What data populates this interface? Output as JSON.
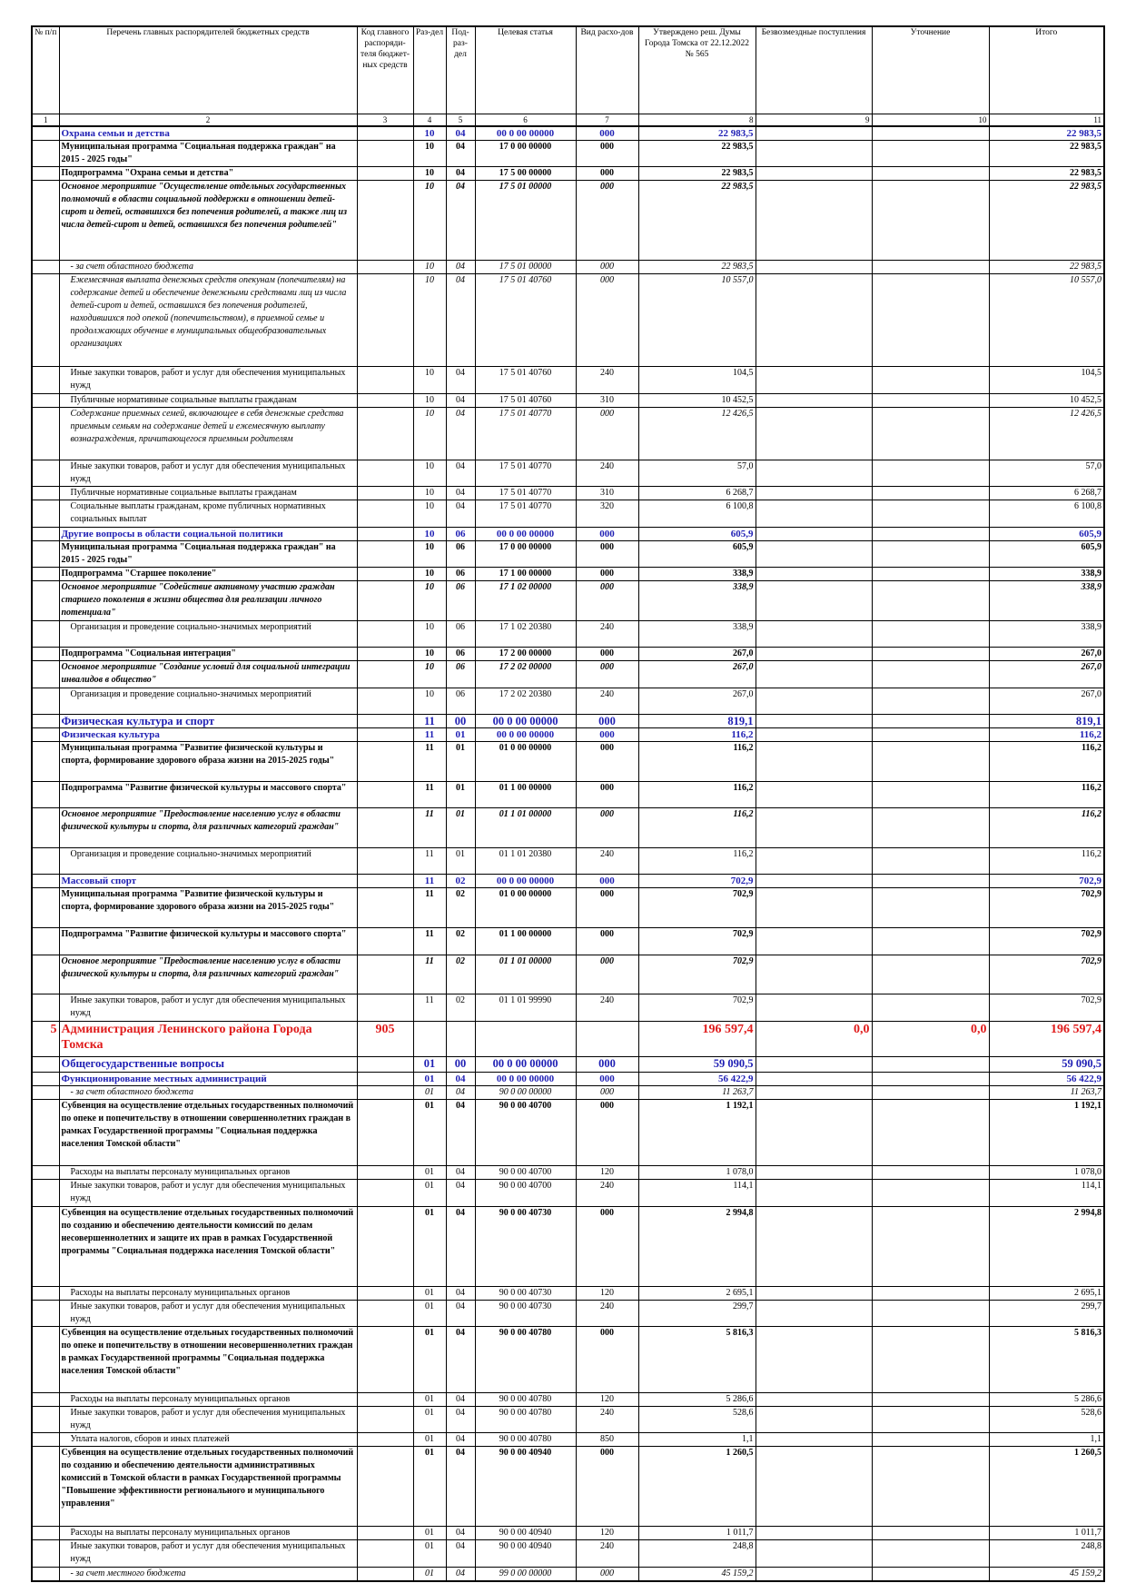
{
  "table": {
    "headers": [
      "№ п/п",
      "Перечень главных распорядителей бюджетных средств",
      "Код главного распоряди-теля бюджет-ных средств",
      "Раз-дел",
      "Под-раз-дел",
      "Целевая статья",
      "Вид расхо-дов",
      "Утверждено реш. Думы Города Томска от 22.12.2022 № 565",
      "Безвозмездные поступления",
      "Уточнение",
      "Итого"
    ],
    "column_numbers": [
      "1",
      "2",
      "3",
      "4",
      "5",
      "6",
      "7",
      "8",
      "9",
      "10",
      "11"
    ],
    "rows": [
      [
        null,
        "Охрана семьи и детства",
        null,
        "10",
        "04",
        "00 0 00 00000",
        "000",
        "22 983,5",
        null,
        null,
        "22 983,5"
      ],
      [
        null,
        "Муниципальная программа \"Социальная поддержка граждан\" на 2015 - 2025 годы\"",
        null,
        "10",
        "04",
        "17 0 00 00000",
        "000",
        "22 983,5",
        null,
        null,
        "22 983,5"
      ],
      [
        null,
        "Подпрограмма \"Охрана семьи и детства\"",
        null,
        "10",
        "04",
        "17 5 00 00000",
        "000",
        "22 983,5",
        null,
        null,
        "22 983,5"
      ],
      [
        null,
        "Основное мероприятие \"Осуществление отдельных государственных полномочий в области социальной поддержки в отношении детей-сирот и детей, оставшихся без попечения родителей, а также лиц из числа детей-сирот и детей, оставшихся без попечения родителей\"",
        null,
        "10",
        "04",
        "17 5 01 00000",
        "000",
        "22 983,5",
        null,
        null,
        "22 983,5"
      ],
      [
        null,
        "- за счет областного бюджета",
        null,
        "10",
        "04",
        "17 5 01 00000",
        "000",
        "22 983,5",
        null,
        null,
        "22 983,5"
      ],
      [
        null,
        "Ежемесячная выплата денежных средств опекунам (попечителям) на содержание детей и обеспечение денежными средствами лиц из числа детей-сирот и детей, оставшихся без попечения родителей, находившихся под опекой (попечительством), в приемной семье и продолжающих обучение в муниципальных общеобразовательных организациях",
        null,
        "10",
        "04",
        "17 5 01 40760",
        "000",
        "10 557,0",
        null,
        null,
        "10 557,0"
      ],
      [
        null,
        "Иные закупки товаров, работ и услуг для обеспечения муниципальных нужд",
        null,
        "10",
        "04",
        "17 5 01 40760",
        "240",
        "104,5",
        null,
        null,
        "104,5"
      ],
      [
        null,
        "Публичные нормативные социальные выплаты гражданам",
        null,
        "10",
        "04",
        "17 5 01 40760",
        "310",
        "10 452,5",
        null,
        null,
        "10 452,5"
      ],
      [
        null,
        "Содержание приемных семей, включающее в себя денежные средства приемным семьям на содержание детей и ежемесячную выплату вознаграждения, причитающегося приемным родителям",
        null,
        "10",
        "04",
        "17 5 01 40770",
        "000",
        "12 426,5",
        null,
        null,
        "12 426,5"
      ],
      [
        null,
        "Иные закупки товаров, работ и услуг для обеспечения муниципальных нужд",
        null,
        "10",
        "04",
        "17 5 01 40770",
        "240",
        "57,0",
        null,
        null,
        "57,0"
      ],
      [
        null,
        "Публичные нормативные социальные выплаты гражданам",
        null,
        "10",
        "04",
        "17 5 01 40770",
        "310",
        "6 268,7",
        null,
        null,
        "6 268,7"
      ],
      [
        null,
        "Социальные выплаты гражданам, кроме публичных нормативных социальных выплат",
        null,
        "10",
        "04",
        "17 5 01 40770",
        "320",
        "6 100,8",
        null,
        null,
        "6 100,8"
      ],
      [
        null,
        "Другие вопросы в области социальной политики",
        null,
        "10",
        "06",
        "00 0 00 00000",
        "000",
        "605,9",
        null,
        null,
        "605,9"
      ],
      [
        null,
        "Муниципальная программа \"Социальная поддержка граждан\" на 2015 - 2025 годы\"",
        null,
        "10",
        "06",
        "17 0 00 00000",
        "000",
        "605,9",
        null,
        null,
        "605,9"
      ],
      [
        null,
        "Подпрограмма \"Старшее поколение\"",
        null,
        "10",
        "06",
        "17 1 00 00000",
        "000",
        "338,9",
        null,
        null,
        "338,9"
      ],
      [
        null,
        "Основное мероприятие \"Содействие активному участию граждан старшего поколения в жизни общества для реализации личного потенциала\"",
        null,
        "10",
        "06",
        "17 1 02 00000",
        "000",
        "338,9",
        null,
        null,
        "338,9"
      ],
      [
        null,
        "Организация и проведение социально-значимых мероприятий",
        null,
        "10",
        "06",
        "17 1 02 20380",
        "240",
        "338,9",
        null,
        null,
        "338,9"
      ],
      [
        null,
        "Подпрограмма \"Социальная интеграция\"",
        null,
        "10",
        "06",
        "17 2 00 00000",
        "000",
        "267,0",
        null,
        null,
        "267,0"
      ],
      [
        null,
        "Основное мероприятие \"Создание условий для социальной интеграции инвалидов в общество\"",
        null,
        "10",
        "06",
        "17 2 02 00000",
        "000",
        "267,0",
        null,
        null,
        "267,0"
      ],
      [
        null,
        "Организация и проведение социально-значимых мероприятий",
        null,
        "10",
        "06",
        "17 2 02 20380",
        "240",
        "267,0",
        null,
        null,
        "267,0"
      ],
      [
        null,
        "Физическая культура и спорт",
        null,
        "11",
        "00",
        "00 0 00 00000",
        "000",
        "819,1",
        null,
        null,
        "819,1"
      ],
      [
        null,
        "Физическая культура",
        null,
        "11",
        "01",
        "00 0 00 00000",
        "000",
        "116,2",
        null,
        null,
        "116,2"
      ],
      [
        null,
        "Муниципальная программа \"Развитие физической культуры и спорта, формирование здорового образа жизни на 2015-2025 годы\"",
        null,
        "11",
        "01",
        "01 0 00 00000",
        "000",
        "116,2",
        null,
        null,
        "116,2"
      ],
      [
        null,
        "Подпрограмма \"Развитие физической культуры и массового спорта\"",
        null,
        "11",
        "01",
        "01 1 00 00000",
        "000",
        "116,2",
        null,
        null,
        "116,2"
      ],
      [
        null,
        "Основное мероприятие \"Предоставление населению услуг в области физической культуры и спорта, для различных категорий граждан\"",
        null,
        "11",
        "01",
        "01 1 01 00000",
        "000",
        "116,2",
        null,
        null,
        "116,2"
      ],
      [
        null,
        "Организация и проведение социально-значимых мероприятий",
        null,
        "11",
        "01",
        "01 1 01 20380",
        "240",
        "116,2",
        null,
        null,
        "116,2"
      ],
      [
        null,
        "Массовый спорт",
        null,
        "11",
        "02",
        "00 0 00 00000",
        "000",
        "702,9",
        null,
        null,
        "702,9"
      ],
      [
        null,
        "Муниципальная программа \"Развитие физической культуры и спорта, формирование здорового образа жизни на 2015-2025 годы\"",
        null,
        "11",
        "02",
        "01 0 00 00000",
        "000",
        "702,9",
        null,
        null,
        "702,9"
      ],
      [
        null,
        "Подпрограмма \"Развитие физической культуры и массового спорта\"",
        null,
        "11",
        "02",
        "01 1 00 00000",
        "000",
        "702,9",
        null,
        null,
        "702,9"
      ],
      [
        null,
        "Основное мероприятие \"Предоставление населению услуг в области физической культуры и спорта, для различных категорий граждан\"",
        null,
        "11",
        "02",
        "01 1 01 00000",
        "000",
        "702,9",
        null,
        null,
        "702,9"
      ],
      [
        null,
        "Иные закупки товаров, работ и услуг для обеспечения муниципальных нужд",
        null,
        "11",
        "02",
        "01 1 01 99990",
        "240",
        "702,9",
        null,
        null,
        "702,9"
      ],
      [
        "5",
        "Администрация Ленинского района Города Томска",
        "905",
        null,
        null,
        null,
        null,
        "196 597,4",
        "0,0",
        "0,0",
        "196 597,4"
      ],
      [
        null,
        "Общегосударственные вопросы",
        null,
        "01",
        "00",
        "00 0 00 00000",
        "000",
        "59 090,5",
        null,
        null,
        "59 090,5"
      ],
      [
        null,
        "Функционирование местных администраций",
        null,
        "01",
        "04",
        "00 0 00 00000",
        "000",
        "56 422,9",
        null,
        null,
        "56 422,9"
      ],
      [
        null,
        "- за счет областного бюджета",
        null,
        "01",
        "04",
        "90 0 00 00000",
        "000",
        "11 263,7",
        null,
        null,
        "11 263,7"
      ],
      [
        null,
        "Субвенция на осуществление отдельных государственных полномочий по опеке и попечительству в отношении совершеннолетних граждан в рамках Государственной программы \"Социальная поддержка населения Томской области\"",
        null,
        "01",
        "04",
        "90 0 00 40700",
        "000",
        "1 192,1",
        null,
        null,
        "1 192,1"
      ],
      [
        null,
        "Расходы на выплаты персоналу муниципальных органов",
        null,
        "01",
        "04",
        "90 0 00 40700",
        "120",
        "1 078,0",
        null,
        null,
        "1 078,0"
      ],
      [
        null,
        "Иные закупки товаров, работ и услуг для обеспечения муниципальных нужд",
        null,
        "01",
        "04",
        "90 0 00 40700",
        "240",
        "114,1",
        null,
        null,
        "114,1"
      ],
      [
        null,
        "Субвенция на осуществление отдельных государственных полномочий по созданию и обеспечению деятельности комиссий по делам несовершеннолетних и защите их прав в рамках Государственной программы \"Социальная поддержка населения Томской области\"",
        null,
        "01",
        "04",
        "90 0 00 40730",
        "000",
        "2 994,8",
        null,
        null,
        "2 994,8"
      ],
      [
        null,
        "Расходы на выплаты персоналу муниципальных органов",
        null,
        "01",
        "04",
        "90 0 00 40730",
        "120",
        "2 695,1",
        null,
        null,
        "2 695,1"
      ],
      [
        null,
        "Иные закупки товаров, работ и услуг для обеспечения муниципальных нужд",
        null,
        "01",
        "04",
        "90 0 00 40730",
        "240",
        "299,7",
        null,
        null,
        "299,7"
      ],
      [
        null,
        "Субвенция на осуществление отдельных государственных полномочий по опеке и попечительству в отношении несовершеннолетних граждан в рамках Государственной программы \"Социальная поддержка населения Томской области\"",
        null,
        "01",
        "04",
        "90 0 00 40780",
        "000",
        "5 816,3",
        null,
        null,
        "5 816,3"
      ],
      [
        null,
        "Расходы на выплаты персоналу муниципальных органов",
        null,
        "01",
        "04",
        "90 0 00 40780",
        "120",
        "5 286,6",
        null,
        null,
        "5 286,6"
      ],
      [
        null,
        "Иные закупки товаров, работ и услуг для обеспечения муниципальных нужд",
        null,
        "01",
        "04",
        "90 0 00 40780",
        "240",
        "528,6",
        null,
        null,
        "528,6"
      ],
      [
        null,
        "Уплата налогов, сборов и иных платежей",
        null,
        "01",
        "04",
        "90 0 00 40780",
        "850",
        "1,1",
        null,
        null,
        "1,1"
      ],
      [
        null,
        "Субвенция на осуществление отдельных государственных полномочий по созданию и обеспечению деятельности административных комиссий в Томской области в рамках Государственной программы \"Повышение эффективности регионального и муниципального управления\"",
        null,
        "01",
        "04",
        "90 0 00 40940",
        "000",
        "1 260,5",
        null,
        null,
        "1 260,5"
      ],
      [
        null,
        "Расходы на выплаты персоналу муниципальных органов",
        null,
        "01",
        "04",
        "90 0 00 40940",
        "120",
        "1 011,7",
        null,
        null,
        "1 011,7"
      ],
      [
        null,
        "Иные закупки товаров, работ и услуг для обеспечения муниципальных нужд",
        null,
        "01",
        "04",
        "90 0 00 40940",
        "240",
        "248,8",
        null,
        null,
        "248,8"
      ],
      [
        null,
        "- за счет местного бюджета",
        null,
        "01",
        "04",
        "99 0 00 00000",
        "000",
        "45 159,2",
        null,
        null,
        "45 159,2"
      ]
    ]
  }
}
